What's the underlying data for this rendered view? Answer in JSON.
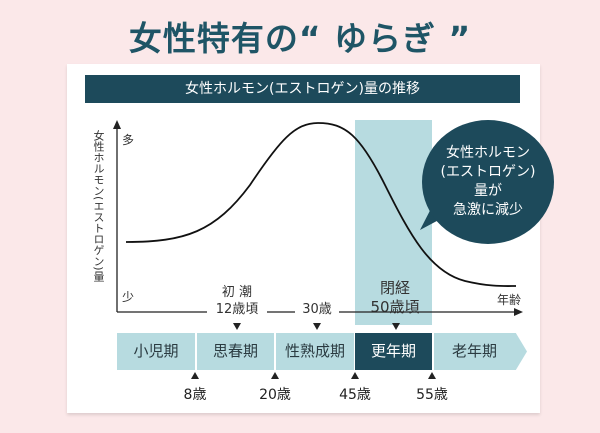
{
  "heading": "女性特有の“ ゆらぎ ”",
  "title": "女性ホルモン(エストロゲン)量の推移",
  "y_axis": {
    "label": "女性ホルモン(エストロゲン)量",
    "high": "多",
    "low": "少"
  },
  "x_axis": {
    "label": "年齢"
  },
  "markers": [
    {
      "line1": "初 潮",
      "line2": "12歳頃"
    },
    {
      "line1": "",
      "line2": "30歳"
    },
    {
      "line1": "閉経",
      "line2": "50歳頃"
    }
  ],
  "bubble": {
    "lines": [
      "女性ホルモン",
      "(エストロゲン)",
      "量が",
      "急激に減少"
    ]
  },
  "phases": [
    {
      "label": "小児期",
      "highlight": false
    },
    {
      "label": "思春期",
      "highlight": false
    },
    {
      "label": "性熟成期",
      "highlight": false
    },
    {
      "label": "更年期",
      "highlight": true
    },
    {
      "label": "老年期",
      "highlight": false
    }
  ],
  "ages": [
    "8歳",
    "20歳",
    "45歳",
    "55歳"
  ],
  "colors": {
    "background": "#fbe8e9",
    "accent": "#1d4a5b",
    "band": "#b7dbe0"
  }
}
